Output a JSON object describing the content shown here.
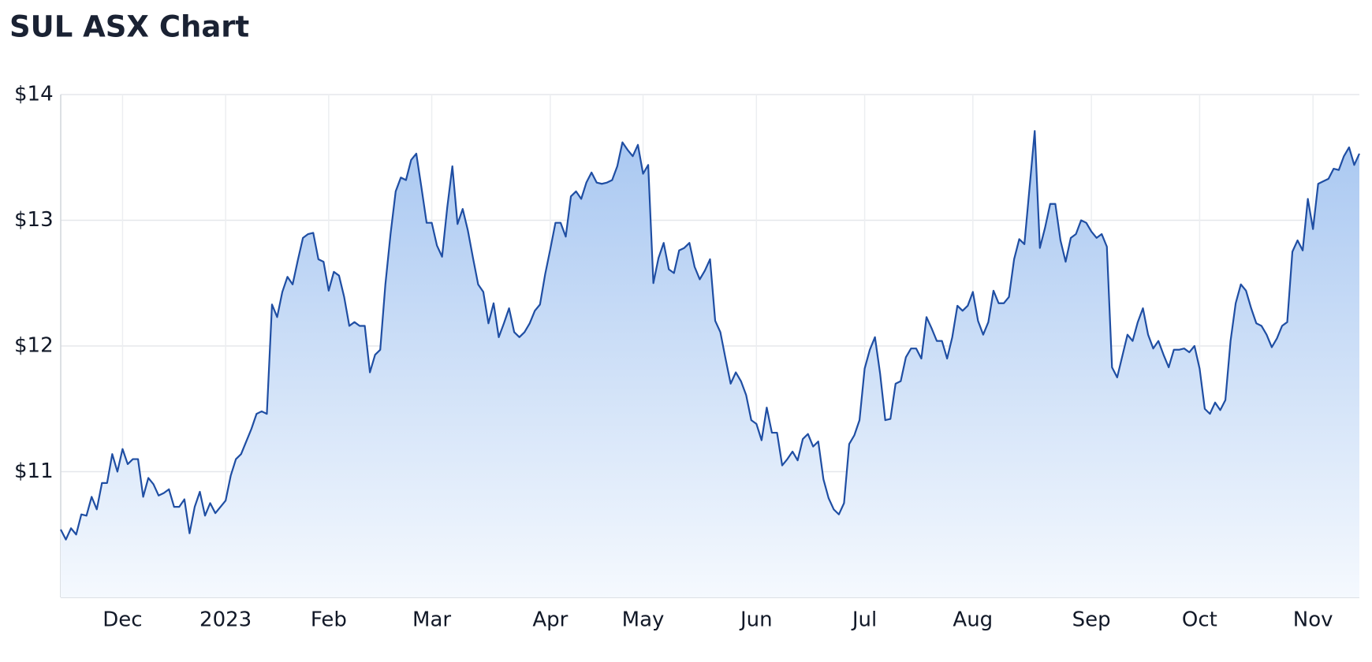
{
  "chart_data": {
    "type": "area",
    "title": "SUL ASX Chart",
    "color": "#1f4ea3",
    "grid": true,
    "ylim": [
      10,
      14
    ],
    "yticks": [
      {
        "value": 11,
        "label": "$11"
      },
      {
        "value": 12,
        "label": "$12"
      },
      {
        "value": 13,
        "label": "$13"
      },
      {
        "value": 14,
        "label": "$14"
      }
    ],
    "categories": [
      null,
      null,
      null,
      null,
      null,
      null,
      null,
      null,
      null,
      null,
      null,
      null,
      "Dec",
      null,
      null,
      null,
      null,
      null,
      null,
      null,
      null,
      null,
      null,
      null,
      null,
      null,
      null,
      null,
      null,
      null,
      null,
      null,
      "2023",
      null,
      null,
      null,
      null,
      null,
      null,
      null,
      null,
      null,
      null,
      null,
      null,
      null,
      null,
      null,
      null,
      null,
      null,
      null,
      "Feb",
      null,
      null,
      null,
      null,
      null,
      null,
      null,
      null,
      null,
      null,
      null,
      null,
      null,
      null,
      null,
      null,
      null,
      null,
      null,
      "Mar",
      null,
      null,
      null,
      null,
      null,
      null,
      null,
      null,
      null,
      null,
      null,
      null,
      null,
      null,
      null,
      null,
      null,
      null,
      null,
      null,
      null,
      null,
      "Apr",
      null,
      null,
      null,
      null,
      null,
      null,
      null,
      null,
      null,
      null,
      null,
      null,
      null,
      null,
      null,
      null,
      null,
      "May",
      null,
      null,
      null,
      null,
      null,
      null,
      null,
      null,
      null,
      null,
      null,
      null,
      null,
      null,
      null,
      null,
      null,
      null,
      null,
      null,
      null,
      "Jun",
      null,
      null,
      null,
      null,
      null,
      null,
      null,
      null,
      null,
      null,
      null,
      null,
      null,
      null,
      null,
      null,
      null,
      null,
      null,
      null,
      "Jul",
      null,
      null,
      null,
      null,
      null,
      null,
      null,
      null,
      null,
      null,
      null,
      null,
      null,
      null,
      null,
      null,
      null,
      null,
      null,
      null,
      "Aug",
      null,
      null,
      null,
      null,
      null,
      null,
      null,
      null,
      null,
      null,
      null,
      null,
      null,
      null,
      null,
      null,
      null,
      null,
      null,
      null,
      null,
      null,
      "Sep",
      null,
      null,
      null,
      null,
      null,
      null,
      null,
      null,
      null,
      null,
      null,
      null,
      null,
      null,
      null,
      null,
      null,
      null,
      null,
      null,
      "Oct",
      null,
      null,
      null,
      null,
      null,
      null,
      null,
      null,
      null,
      null,
      null,
      null,
      null,
      null,
      null,
      null,
      null,
      null,
      null,
      null,
      null,
      "Nov",
      null,
      null,
      null,
      null,
      null,
      null,
      null,
      null,
      null
    ],
    "values": [
      10.54,
      10.46,
      10.55,
      10.5,
      10.66,
      10.65,
      10.8,
      10.7,
      10.91,
      10.91,
      11.14,
      11.0,
      11.18,
      11.06,
      11.1,
      11.1,
      10.8,
      10.95,
      10.9,
      10.81,
      10.83,
      10.86,
      10.72,
      10.72,
      10.78,
      10.51,
      10.72,
      10.84,
      10.65,
      10.75,
      10.67,
      10.72,
      10.77,
      10.97,
      11.1,
      11.14,
      11.24,
      11.34,
      11.46,
      11.48,
      11.46,
      12.33,
      12.23,
      12.43,
      12.55,
      12.49,
      12.68,
      12.86,
      12.89,
      12.9,
      12.69,
      12.67,
      12.44,
      12.59,
      12.56,
      12.39,
      12.16,
      12.19,
      12.16,
      12.16,
      11.79,
      11.93,
      11.97,
      12.49,
      12.89,
      13.23,
      13.34,
      13.32,
      13.48,
      13.53,
      13.26,
      12.98,
      12.98,
      12.8,
      12.71,
      13.1,
      13.43,
      12.97,
      13.09,
      12.92,
      12.7,
      12.49,
      12.43,
      12.18,
      12.34,
      12.07,
      12.18,
      12.3,
      12.11,
      12.07,
      12.11,
      12.18,
      12.28,
      12.33,
      12.57,
      12.77,
      12.98,
      12.98,
      12.87,
      13.19,
      13.23,
      13.17,
      13.3,
      13.38,
      13.3,
      13.29,
      13.3,
      13.32,
      13.43,
      13.62,
      13.56,
      13.51,
      13.6,
      13.37,
      13.44,
      12.5,
      12.7,
      12.82,
      12.61,
      12.58,
      12.76,
      12.78,
      12.82,
      12.63,
      12.53,
      12.6,
      12.69,
      12.2,
      12.11,
      11.9,
      11.7,
      11.79,
      11.72,
      11.61,
      11.41,
      11.38,
      11.25,
      11.51,
      11.31,
      11.31,
      11.05,
      11.1,
      11.16,
      11.09,
      11.26,
      11.3,
      11.2,
      11.24,
      10.94,
      10.79,
      10.7,
      10.66,
      10.75,
      11.22,
      11.29,
      11.41,
      11.82,
      11.97,
      12.07,
      11.78,
      11.41,
      11.42,
      11.7,
      11.72,
      11.91,
      11.98,
      11.98,
      11.9,
      12.23,
      12.14,
      12.04,
      12.04,
      11.9,
      12.07,
      12.32,
      12.28,
      12.32,
      12.43,
      12.2,
      12.09,
      12.19,
      12.44,
      12.34,
      12.34,
      12.39,
      12.69,
      12.85,
      12.81,
      13.26,
      13.71,
      12.78,
      12.94,
      13.13,
      13.13,
      12.84,
      12.67,
      12.86,
      12.89,
      13.0,
      12.98,
      12.91,
      12.86,
      12.89,
      12.79,
      11.83,
      11.75,
      11.92,
      12.09,
      12.04,
      12.19,
      12.3,
      12.09,
      11.98,
      12.04,
      11.93,
      11.83,
      11.97,
      11.97,
      11.98,
      11.95,
      12.0,
      11.82,
      11.5,
      11.46,
      11.55,
      11.49,
      11.57,
      12.04,
      12.34,
      12.49,
      12.44,
      12.3,
      12.18,
      12.16,
      12.09,
      11.99,
      12.06,
      12.16,
      12.19,
      12.75,
      12.84,
      12.76,
      13.17,
      12.93,
      13.29,
      13.31,
      13.33,
      13.41,
      13.4,
      13.51,
      13.58,
      13.44,
      13.53
    ]
  }
}
